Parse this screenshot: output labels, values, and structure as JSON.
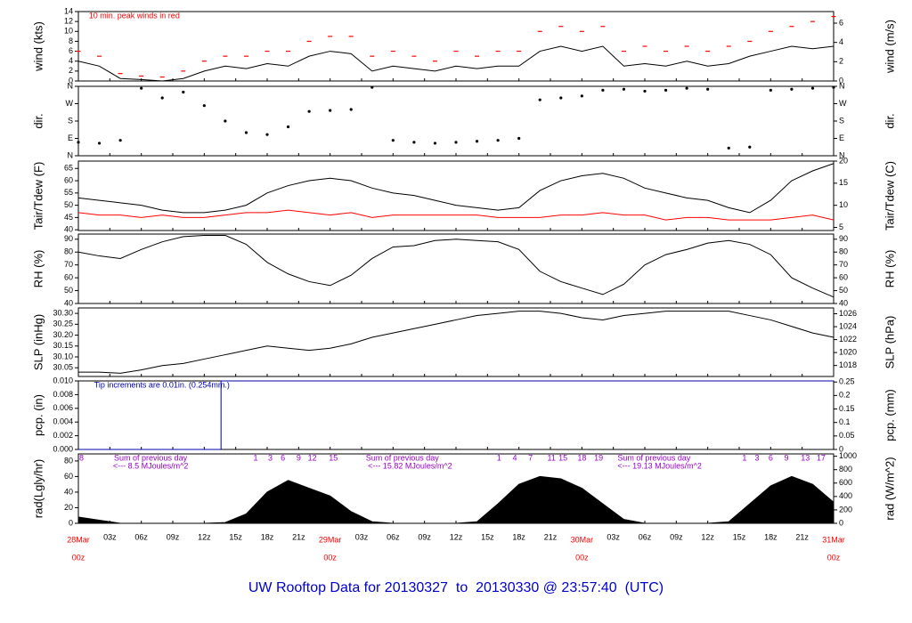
{
  "title": "UW Rooftop Data for 20130327  to  20130330 @ 23:57:40  (UTC)",
  "x_axis": {
    "xlim": [
      0,
      72
    ],
    "xticks": [
      {
        "value": 0,
        "label": "00z"
      },
      {
        "value": 3,
        "label": "03z"
      },
      {
        "value": 6,
        "label": "06z"
      },
      {
        "value": 9,
        "label": "09z"
      },
      {
        "value": 12,
        "label": "12z"
      },
      {
        "value": 15,
        "label": "15z"
      },
      {
        "value": 18,
        "label": "18z"
      },
      {
        "value": 21,
        "label": "21z"
      },
      {
        "value": 24,
        "label": "00z"
      },
      {
        "value": 27,
        "label": "03z"
      },
      {
        "value": 30,
        "label": "06z"
      },
      {
        "value": 33,
        "label": "09z"
      },
      {
        "value": 36,
        "label": "12z"
      },
      {
        "value": 39,
        "label": "15z"
      },
      {
        "value": 42,
        "label": "18z"
      },
      {
        "value": 45,
        "label": "21z"
      },
      {
        "value": 48,
        "label": "00z"
      },
      {
        "value": 51,
        "label": "03z"
      },
      {
        "value": 54,
        "label": "06z"
      },
      {
        "value": 57,
        "label": "09z"
      },
      {
        "value": 60,
        "label": "12z"
      },
      {
        "value": 63,
        "label": "15z"
      },
      {
        "value": 66,
        "label": "18z"
      },
      {
        "value": 69,
        "label": "21z"
      },
      {
        "value": 72,
        "label": "00z"
      }
    ],
    "dates": [
      {
        "value": 0,
        "label": "28Mar"
      },
      {
        "value": 24,
        "label": "29Mar"
      },
      {
        "value": 48,
        "label": "30Mar"
      },
      {
        "value": 72,
        "label": "31Mar"
      }
    ],
    "date_color": "#ff0000"
  },
  "chart_data": [
    {
      "type": "line",
      "ylabel": "wind (kts)",
      "y2label": "wind (m/s)",
      "ylim": [
        0,
        14
      ],
      "yticks": [
        0,
        2,
        4,
        6,
        8,
        10,
        12,
        14
      ],
      "y2lim": [
        0,
        7.2
      ],
      "y2ticks": [
        0,
        2,
        4,
        6
      ],
      "annotations": [
        {
          "x": 1,
          "text": "10 min. peak winds in red",
          "color": "#ff0000"
        }
      ],
      "x": [
        0,
        2,
        4,
        6,
        8,
        10,
        12,
        14,
        16,
        18,
        20,
        22,
        24,
        26,
        28,
        30,
        32,
        34,
        36,
        38,
        40,
        42,
        44,
        46,
        48,
        50,
        52,
        54,
        56,
        58,
        60,
        62,
        64,
        66,
        68,
        70,
        72
      ],
      "series": [
        {
          "color": "#000000",
          "values": [
            4,
            3,
            0.5,
            0.3,
            0,
            0.5,
            2,
            3,
            2.5,
            3.5,
            3,
            5,
            6,
            5.5,
            2,
            3,
            2.5,
            2,
            3,
            2.5,
            3,
            3,
            6,
            7,
            6,
            7,
            3,
            3.5,
            3,
            4,
            3,
            3.5,
            5,
            6,
            7,
            6.5,
            7
          ]
        },
        {
          "color": "#ff0000",
          "marker": "dash",
          "values": [
            6,
            5,
            1.5,
            1,
            0.8,
            2,
            4,
            5,
            5,
            6,
            6,
            8,
            9,
            9,
            5,
            6,
            5,
            4,
            6,
            5,
            6,
            6,
            10,
            11,
            10,
            11,
            6,
            7,
            6,
            7,
            6,
            7,
            8,
            10,
            11,
            12,
            13
          ]
        }
      ]
    },
    {
      "type": "scatter",
      "ylabel": "dir.",
      "y2label": "dir.",
      "ylim": [
        0,
        360
      ],
      "yticks": [
        {
          "value": 0,
          "label": "N"
        },
        {
          "value": 90,
          "label": "E"
        },
        {
          "value": 180,
          "label": "S"
        },
        {
          "value": 270,
          "label": "W"
        },
        {
          "value": 360,
          "label": "N"
        }
      ],
      "y2lim": [
        0,
        360
      ],
      "y2ticks": [
        {
          "value": 0,
          "label": "N"
        },
        {
          "value": 90,
          "label": "E"
        },
        {
          "value": 180,
          "label": "S"
        },
        {
          "value": 270,
          "label": "W"
        },
        {
          "value": 360,
          "label": "N"
        }
      ],
      "x": [
        0,
        2,
        4,
        6,
        8,
        10,
        12,
        14,
        16,
        18,
        20,
        22,
        24,
        26,
        28,
        30,
        32,
        34,
        36,
        38,
        40,
        42,
        44,
        46,
        48,
        50,
        52,
        54,
        56,
        58,
        60,
        62,
        64,
        66,
        68,
        70,
        72
      ],
      "series": [
        {
          "color": "#000000",
          "values": [
            70,
            65,
            80,
            350,
            300,
            330,
            260,
            180,
            120,
            110,
            150,
            230,
            235,
            240,
            355,
            80,
            70,
            65,
            70,
            75,
            80,
            90,
            290,
            300,
            310,
            340,
            345,
            335,
            340,
            350,
            345,
            40,
            45,
            340,
            345,
            350,
            355
          ]
        }
      ]
    },
    {
      "type": "line",
      "ylabel": "Tair/Tdew (F)",
      "y2label": "Tair/Tdew (C)",
      "ylim": [
        39.7,
        68
      ],
      "yticks": [
        40,
        45,
        50,
        55,
        60,
        65
      ],
      "y2lim": [
        4.3,
        20
      ],
      "y2ticks": [
        5,
        10,
        15,
        20
      ],
      "x": [
        0,
        2,
        4,
        6,
        8,
        10,
        12,
        14,
        16,
        18,
        20,
        22,
        24,
        26,
        28,
        30,
        32,
        34,
        36,
        38,
        40,
        42,
        44,
        46,
        48,
        50,
        52,
        54,
        56,
        58,
        60,
        62,
        64,
        66,
        68,
        70,
        72
      ],
      "series": [
        {
          "color": "#000000",
          "values": [
            53,
            52,
            51,
            50,
            48,
            47,
            47,
            48,
            50,
            55,
            58,
            60,
            61,
            60,
            57,
            55,
            54,
            52,
            50,
            49,
            48,
            49,
            56,
            60,
            62,
            63,
            61,
            57,
            55,
            53,
            52,
            49,
            47,
            52,
            60,
            64,
            67
          ]
        },
        {
          "color": "#ff0000",
          "values": [
            47,
            46,
            46,
            45,
            46,
            45,
            45,
            46,
            47,
            47,
            48,
            47,
            46,
            47,
            45,
            46,
            46,
            46,
            46,
            46,
            45,
            45,
            45,
            46,
            46,
            47,
            46,
            46,
            44,
            45,
            45,
            44,
            44,
            44,
            45,
            46,
            44
          ]
        }
      ]
    },
    {
      "type": "line",
      "ylabel": "RH (%)",
      "y2label": "RH (%)",
      "ylim": [
        40,
        94
      ],
      "yticks": [
        40,
        50,
        60,
        70,
        80,
        90
      ],
      "y2lim": [
        40,
        94
      ],
      "y2ticks": [
        40,
        50,
        60,
        70,
        80,
        90
      ],
      "x": [
        0,
        2,
        4,
        6,
        8,
        10,
        12,
        14,
        16,
        18,
        20,
        22,
        24,
        26,
        28,
        30,
        32,
        34,
        36,
        38,
        40,
        42,
        44,
        46,
        48,
        50,
        52,
        54,
        56,
        58,
        60,
        62,
        64,
        66,
        68,
        70,
        72
      ],
      "series": [
        {
          "color": "#000000",
          "values": [
            80,
            77,
            75,
            82,
            88,
            92,
            93,
            93,
            86,
            72,
            63,
            57,
            54,
            62,
            75,
            84,
            85,
            89,
            90,
            89,
            88,
            82,
            65,
            57,
            52,
            47,
            55,
            70,
            78,
            82,
            87,
            89,
            86,
            78,
            60,
            52,
            45
          ]
        }
      ]
    },
    {
      "type": "line",
      "ylabel": "SLP (inHg)",
      "y2label": "SLP (hPa)",
      "ylim": [
        30.01,
        30.325
      ],
      "yticks": [
        30.05,
        {
          "value": 30.1,
          "label": "30.10"
        },
        30.15,
        {
          "value": 30.2,
          "label": "30.20"
        },
        30.25,
        {
          "value": 30.3,
          "label": "30.30"
        }
      ],
      "y2lim": [
        1016.3,
        1026.9
      ],
      "y2ticks": [
        1018,
        1020,
        1022,
        1024,
        1026
      ],
      "x": [
        0,
        2,
        4,
        6,
        8,
        10,
        12,
        14,
        16,
        18,
        20,
        22,
        24,
        26,
        28,
        30,
        32,
        34,
        36,
        38,
        40,
        42,
        44,
        46,
        48,
        50,
        52,
        54,
        56,
        58,
        60,
        62,
        64,
        66,
        68,
        70,
        72
      ],
      "series": [
        {
          "color": "#000000",
          "values": [
            30.03,
            30.03,
            30.025,
            30.04,
            30.06,
            30.07,
            30.09,
            30.11,
            30.13,
            30.15,
            30.14,
            30.13,
            30.14,
            30.16,
            30.19,
            30.21,
            30.23,
            30.25,
            30.27,
            30.29,
            30.3,
            30.31,
            30.31,
            30.3,
            30.28,
            30.27,
            30.29,
            30.3,
            30.31,
            30.31,
            30.31,
            30.31,
            30.29,
            30.27,
            30.24,
            30.21,
            30.19
          ]
        }
      ]
    },
    {
      "type": "line",
      "ylabel": "pcp. (in)",
      "y2label": "pcp. (mm)",
      "ylim": [
        0,
        0.01
      ],
      "yticks": [
        {
          "value": 0,
          "label": "0.000"
        },
        0.002,
        0.004,
        0.006,
        0.008,
        {
          "value": 0.01,
          "label": "0.010"
        }
      ],
      "y2lim": [
        0,
        0.254
      ],
      "y2ticks": [
        0,
        0.05,
        0.1,
        0.15,
        0.2,
        0.25
      ],
      "annotations": [
        {
          "x": 1.5,
          "text": "Tip increments are 0.01in. (0.254mm.)",
          "color": "#0000aa"
        }
      ],
      "x": [
        0,
        13.6,
        13.6,
        72
      ],
      "series": [
        {
          "color": "#0000aa",
          "values": [
            0,
            0,
            0.01,
            0.01
          ]
        }
      ]
    },
    {
      "type": "area",
      "ylabel": "rad(Lgly/hr)",
      "y2label": "rad (W/m^2)",
      "ylim": [
        0,
        89
      ],
      "yticks": [
        0,
        20,
        40,
        60,
        80
      ],
      "y2lim": [
        0,
        1035
      ],
      "y2ticks": [
        0,
        200,
        400,
        600,
        800,
        1000
      ],
      "annotations": [
        {
          "x": 0.3,
          "text": "8",
          "color": "#9900cc"
        },
        {
          "x": 3.4,
          "text": "Sum of previous day",
          "color": "#9900cc"
        },
        {
          "x": 3.3,
          "text": "<--- 8.5 MJoules/m^2",
          "color": "#9900cc",
          "row": 2
        },
        {
          "x": 16.9,
          "text": "1",
          "color": "#9900cc"
        },
        {
          "x": 18.3,
          "text": "3",
          "color": "#9900cc"
        },
        {
          "x": 19.5,
          "text": "6",
          "color": "#9900cc"
        },
        {
          "x": 21,
          "text": "9",
          "color": "#9900cc"
        },
        {
          "x": 22.3,
          "text": "12",
          "color": "#9900cc"
        },
        {
          "x": 24.3,
          "text": "15",
          "color": "#9900cc"
        },
        {
          "x": 27.4,
          "text": "Sum of previous day",
          "color": "#9900cc"
        },
        {
          "x": 27.6,
          "text": "<--- 15.82 MJoules/m^2",
          "color": "#9900cc",
          "row": 2
        },
        {
          "x": 40.1,
          "text": "1",
          "color": "#9900cc"
        },
        {
          "x": 41.6,
          "text": "4",
          "color": "#9900cc"
        },
        {
          "x": 43.1,
          "text": "7",
          "color": "#9900cc"
        },
        {
          "x": 45.1,
          "text": "11",
          "color": "#9900cc"
        },
        {
          "x": 46.2,
          "text": "15",
          "color": "#9900cc"
        },
        {
          "x": 48,
          "text": "18",
          "color": "#9900cc"
        },
        {
          "x": 49.6,
          "text": "19",
          "color": "#9900cc"
        },
        {
          "x": 51.4,
          "text": "Sum of previous day",
          "color": "#9900cc"
        },
        {
          "x": 51.4,
          "text": "<--- 19.13 MJoules/m^2",
          "color": "#9900cc",
          "row": 2
        },
        {
          "x": 63.5,
          "text": "1",
          "color": "#9900cc"
        },
        {
          "x": 64.7,
          "text": "3",
          "color": "#9900cc"
        },
        {
          "x": 66,
          "text": "6",
          "color": "#9900cc"
        },
        {
          "x": 67.5,
          "text": "9",
          "color": "#9900cc"
        },
        {
          "x": 69.3,
          "text": "13",
          "color": "#9900cc"
        },
        {
          "x": 70.8,
          "text": "17",
          "color": "#9900cc"
        }
      ],
      "x": [
        0,
        2,
        4,
        6,
        8,
        10,
        12,
        14,
        16,
        18,
        20,
        22,
        24,
        26,
        28,
        30,
        32,
        34,
        36,
        38,
        40,
        42,
        44,
        46,
        48,
        50,
        52,
        54,
        56,
        58,
        60,
        62,
        64,
        66,
        68,
        70,
        72
      ],
      "series": [
        {
          "color": "#000000",
          "values": [
            8,
            4,
            0,
            0,
            0,
            0,
            0,
            1,
            12,
            40,
            55,
            45,
            35,
            15,
            2,
            0,
            0,
            0,
            0,
            2,
            25,
            50,
            60,
            57,
            45,
            25,
            5,
            0,
            0,
            0,
            0,
            2,
            25,
            48,
            60,
            50,
            27
          ]
        }
      ]
    }
  ]
}
